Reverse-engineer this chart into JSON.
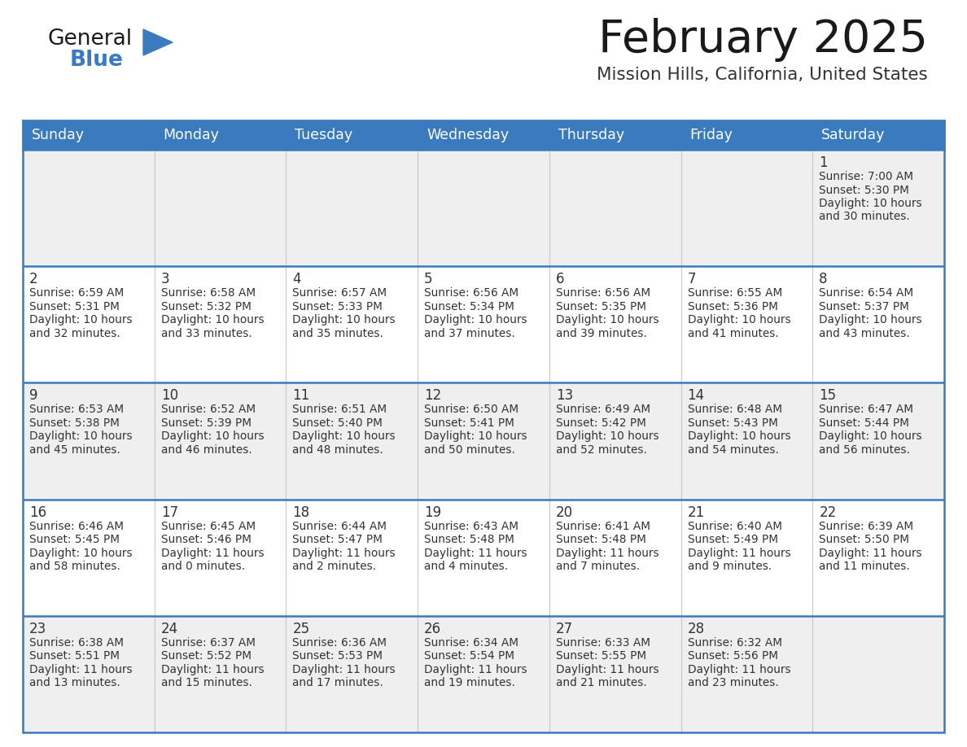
{
  "title": "February 2025",
  "subtitle": "Mission Hills, California, United States",
  "days_of_week": [
    "Sunday",
    "Monday",
    "Tuesday",
    "Wednesday",
    "Thursday",
    "Friday",
    "Saturday"
  ],
  "header_bg": "#3a7abf",
  "header_text": "#ffffff",
  "cell_bg_odd": "#efefef",
  "cell_bg_even": "#ffffff",
  "cell_text": "#333333",
  "border_color": "#3a7abf",
  "logo_general_color": "#1a1a1a",
  "logo_blue_color": "#3a7abf",
  "title_color": "#1a1a1a",
  "subtitle_color": "#333333",
  "calendar_data": [
    [
      null,
      null,
      null,
      null,
      null,
      null,
      {
        "day": 1,
        "sunrise": "7:00 AM",
        "sunset": "5:30 PM",
        "daylight": "10 hours and 30 minutes."
      }
    ],
    [
      {
        "day": 2,
        "sunrise": "6:59 AM",
        "sunset": "5:31 PM",
        "daylight": "10 hours and 32 minutes."
      },
      {
        "day": 3,
        "sunrise": "6:58 AM",
        "sunset": "5:32 PM",
        "daylight": "10 hours and 33 minutes."
      },
      {
        "day": 4,
        "sunrise": "6:57 AM",
        "sunset": "5:33 PM",
        "daylight": "10 hours and 35 minutes."
      },
      {
        "day": 5,
        "sunrise": "6:56 AM",
        "sunset": "5:34 PM",
        "daylight": "10 hours and 37 minutes."
      },
      {
        "day": 6,
        "sunrise": "6:56 AM",
        "sunset": "5:35 PM",
        "daylight": "10 hours and 39 minutes."
      },
      {
        "day": 7,
        "sunrise": "6:55 AM",
        "sunset": "5:36 PM",
        "daylight": "10 hours and 41 minutes."
      },
      {
        "day": 8,
        "sunrise": "6:54 AM",
        "sunset": "5:37 PM",
        "daylight": "10 hours and 43 minutes."
      }
    ],
    [
      {
        "day": 9,
        "sunrise": "6:53 AM",
        "sunset": "5:38 PM",
        "daylight": "10 hours and 45 minutes."
      },
      {
        "day": 10,
        "sunrise": "6:52 AM",
        "sunset": "5:39 PM",
        "daylight": "10 hours and 46 minutes."
      },
      {
        "day": 11,
        "sunrise": "6:51 AM",
        "sunset": "5:40 PM",
        "daylight": "10 hours and 48 minutes."
      },
      {
        "day": 12,
        "sunrise": "6:50 AM",
        "sunset": "5:41 PM",
        "daylight": "10 hours and 50 minutes."
      },
      {
        "day": 13,
        "sunrise": "6:49 AM",
        "sunset": "5:42 PM",
        "daylight": "10 hours and 52 minutes."
      },
      {
        "day": 14,
        "sunrise": "6:48 AM",
        "sunset": "5:43 PM",
        "daylight": "10 hours and 54 minutes."
      },
      {
        "day": 15,
        "sunrise": "6:47 AM",
        "sunset": "5:44 PM",
        "daylight": "10 hours and 56 minutes."
      }
    ],
    [
      {
        "day": 16,
        "sunrise": "6:46 AM",
        "sunset": "5:45 PM",
        "daylight": "10 hours and 58 minutes."
      },
      {
        "day": 17,
        "sunrise": "6:45 AM",
        "sunset": "5:46 PM",
        "daylight": "11 hours and 0 minutes."
      },
      {
        "day": 18,
        "sunrise": "6:44 AM",
        "sunset": "5:47 PM",
        "daylight": "11 hours and 2 minutes."
      },
      {
        "day": 19,
        "sunrise": "6:43 AM",
        "sunset": "5:48 PM",
        "daylight": "11 hours and 4 minutes."
      },
      {
        "day": 20,
        "sunrise": "6:41 AM",
        "sunset": "5:48 PM",
        "daylight": "11 hours and 7 minutes."
      },
      {
        "day": 21,
        "sunrise": "6:40 AM",
        "sunset": "5:49 PM",
        "daylight": "11 hours and 9 minutes."
      },
      {
        "day": 22,
        "sunrise": "6:39 AM",
        "sunset": "5:50 PM",
        "daylight": "11 hours and 11 minutes."
      }
    ],
    [
      {
        "day": 23,
        "sunrise": "6:38 AM",
        "sunset": "5:51 PM",
        "daylight": "11 hours and 13 minutes."
      },
      {
        "day": 24,
        "sunrise": "6:37 AM",
        "sunset": "5:52 PM",
        "daylight": "11 hours and 15 minutes."
      },
      {
        "day": 25,
        "sunrise": "6:36 AM",
        "sunset": "5:53 PM",
        "daylight": "11 hours and 17 minutes."
      },
      {
        "day": 26,
        "sunrise": "6:34 AM",
        "sunset": "5:54 PM",
        "daylight": "11 hours and 19 minutes."
      },
      {
        "day": 27,
        "sunrise": "6:33 AM",
        "sunset": "5:55 PM",
        "daylight": "11 hours and 21 minutes."
      },
      {
        "day": 28,
        "sunrise": "6:32 AM",
        "sunset": "5:56 PM",
        "daylight": "11 hours and 23 minutes."
      },
      null
    ]
  ],
  "num_rows": 5,
  "num_cols": 7,
  "fig_width": 11.88,
  "fig_height": 9.18,
  "dpi": 100
}
